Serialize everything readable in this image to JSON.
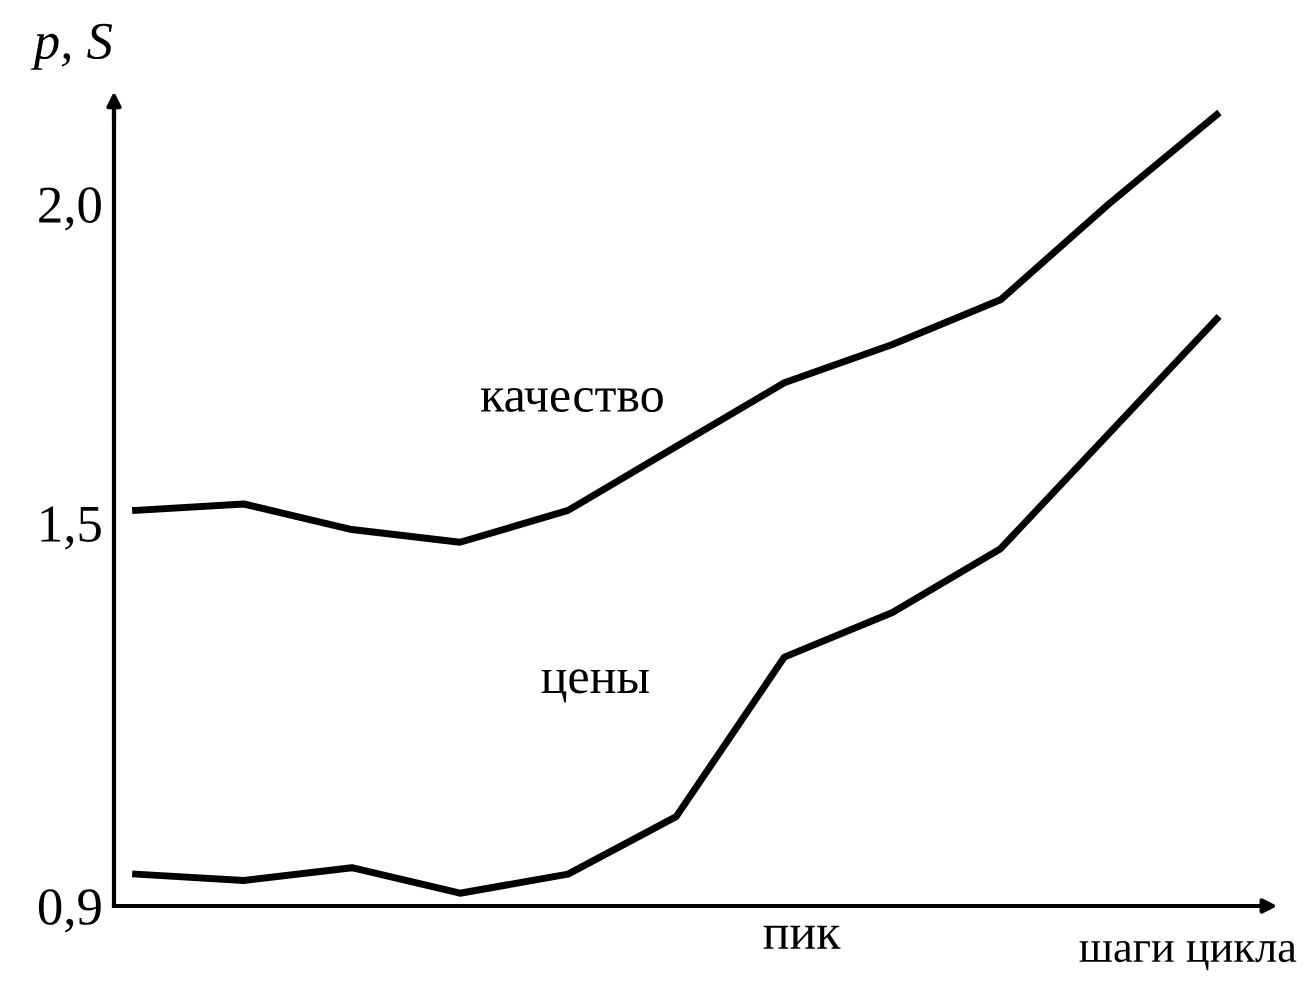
{
  "chart_data": {
    "type": "line",
    "ylabel": "p, S",
    "xlabel": "шаги цикла",
    "categories": [
      null,
      null,
      null,
      null,
      null,
      null,
      null,
      null,
      null,
      null,
      null
    ],
    "series": [
      {
        "color": "#000000",
        "values": [
          1.52,
          1.53,
          1.49,
          1.47,
          1.52,
          1.62,
          1.72,
          1.78,
          1.85,
          2.0,
          2.14
        ]
      },
      {
        "color": "#000000",
        "values": [
          0.95,
          0.94,
          0.96,
          0.92,
          0.95,
          1.04,
          1.29,
          1.36,
          1.46,
          1.64,
          1.82
        ]
      }
    ],
    "annotations": [
      "качество",
      "цены",
      "пик"
    ],
    "ylim": [
      0.9,
      2.16
    ],
    "yticks": [
      {
        "value": 0.9,
        "label": "0,9"
      },
      {
        "value": 1.5,
        "label": "1,5"
      },
      {
        "value": 2.0,
        "label": "2,0"
      }
    ],
    "tick_labels": "y",
    "grid": false,
    "legend": false,
    "marker": "none",
    "line_style": "solid"
  }
}
